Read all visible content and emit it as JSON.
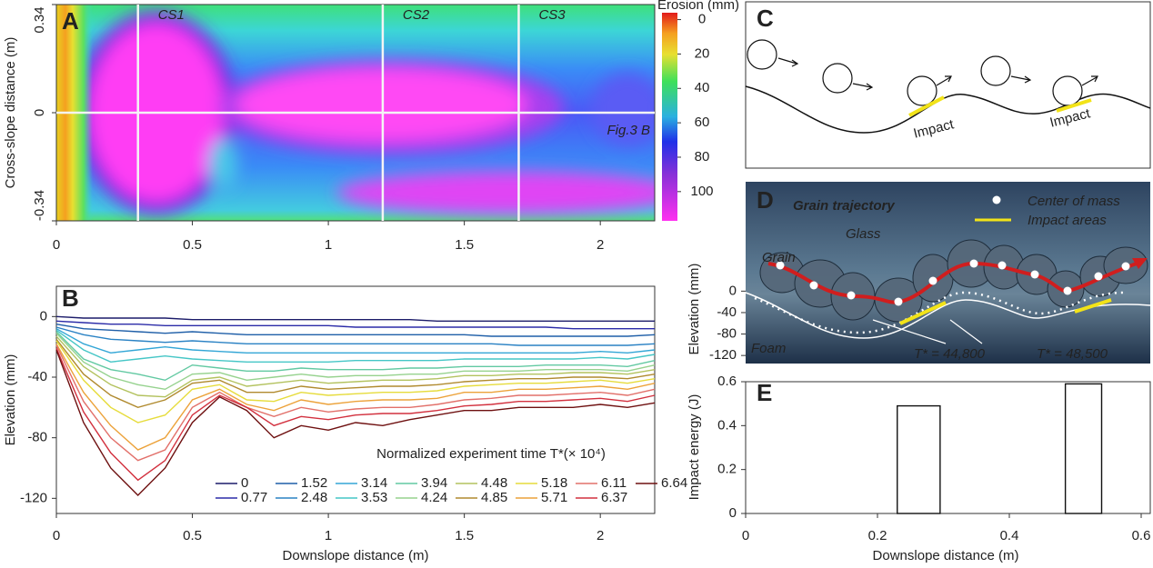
{
  "chart_data": [
    {
      "type": "heatmap",
      "panel_label": "A",
      "ylabel": "Cross-slope distance (m)",
      "xlim": [
        0,
        2.2
      ],
      "xticks": [
        0,
        0.5,
        1,
        1.5,
        2
      ],
      "ylim": [
        -0.34,
        0.34
      ],
      "yticks": [
        -0.34,
        0,
        0.34
      ],
      "colorbar": {
        "label": "Erosion (mm)",
        "clim": [
          -4,
          117
        ],
        "ticks": [
          0,
          20,
          40,
          60,
          80,
          100
        ]
      },
      "cross_sections": [
        {
          "text": "CS1",
          "x": 0.3
        },
        {
          "text": "CS2",
          "x": 1.2
        },
        {
          "text": "CS3",
          "x": 1.7
        }
      ],
      "profile": {
        "text": "Fig.3 B",
        "y": 0
      }
    },
    {
      "type": "line",
      "panel_label": "B",
      "xlabel": "Downslope distance (m)",
      "ylabel": "Elevation (mm)",
      "xlim": [
        0,
        2.2
      ],
      "xticks": [
        0,
        0.5,
        1,
        1.5,
        2
      ],
      "ylim": [
        -130,
        20
      ],
      "yticks": [
        -120,
        -80,
        -40,
        0
      ],
      "legend_title": "Normalized experiment time T*(× 10⁴)",
      "x": [
        0,
        0.1,
        0.2,
        0.3,
        0.4,
        0.5,
        0.6,
        0.7,
        0.8,
        0.9,
        1,
        1.1,
        1.2,
        1.3,
        1.4,
        1.5,
        1.6,
        1.7,
        1.8,
        1.9,
        2,
        2.1,
        2.2
      ],
      "series": [
        {
          "name": "0",
          "color": "#1c1c6a",
          "values": [
            0,
            -1,
            -1,
            -1,
            -1,
            -2,
            -2,
            -2,
            -2,
            -2,
            -2,
            -2,
            -2,
            -2,
            -3,
            -3,
            -3,
            -3,
            -3,
            -3,
            -3,
            -3,
            -3
          ]
        },
        {
          "name": "0.77",
          "color": "#2b2ba8",
          "values": [
            -3,
            -4,
            -5,
            -5,
            -6,
            -6,
            -6,
            -6,
            -6,
            -6,
            -6,
            -7,
            -7,
            -7,
            -7,
            -7,
            -7,
            -7,
            -7,
            -8,
            -8,
            -8,
            -8
          ]
        },
        {
          "name": "1.52",
          "color": "#1f5fa8",
          "values": [
            -5,
            -8,
            -9,
            -10,
            -11,
            -10,
            -11,
            -12,
            -12,
            -12,
            -12,
            -12,
            -12,
            -12,
            -12,
            -12,
            -13,
            -13,
            -13,
            -13,
            -13,
            -13,
            -12
          ]
        },
        {
          "name": "2.48",
          "color": "#2a82c4",
          "values": [
            -7,
            -12,
            -15,
            -16,
            -17,
            -16,
            -17,
            -18,
            -18,
            -18,
            -18,
            -18,
            -18,
            -18,
            -18,
            -18,
            -18,
            -19,
            -19,
            -19,
            -19,
            -19,
            -18
          ]
        },
        {
          "name": "3.14",
          "color": "#33a6d6",
          "values": [
            -8,
            -18,
            -24,
            -22,
            -20,
            -22,
            -23,
            -24,
            -24,
            -24,
            -24,
            -24,
            -24,
            -24,
            -24,
            -24,
            -24,
            -24,
            -24,
            -24,
            -23,
            -24,
            -22
          ]
        },
        {
          "name": "3.53",
          "color": "#45c6c6",
          "values": [
            -9,
            -22,
            -30,
            -28,
            -26,
            -28,
            -29,
            -30,
            -30,
            -30,
            -30,
            -29,
            -29,
            -29,
            -29,
            -28,
            -28,
            -28,
            -28,
            -28,
            -27,
            -28,
            -25
          ]
        },
        {
          "name": "3.94",
          "color": "#62c9a2",
          "values": [
            -10,
            -28,
            -35,
            -38,
            -42,
            -32,
            -34,
            -36,
            -36,
            -34,
            -35,
            -35,
            -35,
            -34,
            -34,
            -33,
            -33,
            -33,
            -32,
            -32,
            -32,
            -33,
            -29
          ]
        },
        {
          "name": "4.24",
          "color": "#96d28e",
          "values": [
            -11,
            -30,
            -40,
            -45,
            -48,
            -38,
            -37,
            -42,
            -40,
            -38,
            -40,
            -39,
            -39,
            -38,
            -38,
            -36,
            -36,
            -36,
            -35,
            -35,
            -35,
            -36,
            -32
          ]
        },
        {
          "name": "4.48",
          "color": "#b3c25e",
          "values": [
            -13,
            -33,
            -45,
            -52,
            -53,
            -42,
            -40,
            -46,
            -44,
            -42,
            -44,
            -43,
            -42,
            -42,
            -41,
            -39,
            -39,
            -38,
            -38,
            -37,
            -37,
            -38,
            -35
          ]
        },
        {
          "name": "4.85",
          "color": "#b08a2e",
          "values": [
            -15,
            -38,
            -52,
            -60,
            -55,
            -44,
            -42,
            -50,
            -50,
            -46,
            -48,
            -47,
            -46,
            -46,
            -45,
            -43,
            -42,
            -41,
            -41,
            -40,
            -40,
            -41,
            -38
          ]
        },
        {
          "name": "5.18",
          "color": "#e6dc3c",
          "values": [
            -16,
            -42,
            -60,
            -70,
            -65,
            -48,
            -45,
            -55,
            -56,
            -50,
            -52,
            -51,
            -50,
            -50,
            -49,
            -46,
            -45,
            -44,
            -44,
            -43,
            -42,
            -44,
            -41
          ]
        },
        {
          "name": "5.71",
          "color": "#eca23a",
          "values": [
            -18,
            -50,
            -72,
            -88,
            -80,
            -55,
            -48,
            -58,
            -62,
            -55,
            -58,
            -56,
            -55,
            -55,
            -54,
            -50,
            -50,
            -48,
            -48,
            -47,
            -46,
            -48,
            -44
          ]
        },
        {
          "name": "6.11",
          "color": "#e2706a",
          "values": [
            -19,
            -56,
            -80,
            -95,
            -88,
            -60,
            -50,
            -60,
            -66,
            -60,
            -63,
            -61,
            -60,
            -60,
            -58,
            -55,
            -54,
            -52,
            -52,
            -51,
            -50,
            -52,
            -48
          ]
        },
        {
          "name": "6.37",
          "color": "#d2303e",
          "values": [
            -21,
            -63,
            -90,
            -108,
            -95,
            -65,
            -52,
            -60,
            -72,
            -66,
            -68,
            -65,
            -64,
            -64,
            -62,
            -59,
            -58,
            -56,
            -56,
            -55,
            -54,
            -56,
            -52
          ]
        },
        {
          "name": "6.64",
          "color": "#6e1010",
          "values": [
            -22,
            -70,
            -100,
            -118,
            -100,
            -70,
            -53,
            -62,
            -80,
            -72,
            -75,
            -70,
            -72,
            -68,
            -65,
            -62,
            -62,
            -60,
            -60,
            -60,
            -58,
            -60,
            -57
          ]
        }
      ]
    },
    {
      "type": "image",
      "panel_label": "D",
      "ylabel": "Elevation (mm)",
      "ylim": [
        -135,
        204
      ],
      "yticks": [
        0,
        -40,
        -80,
        -120
      ],
      "legend": [
        {
          "name": "Center of mass",
          "color": "#ffffff"
        },
        {
          "name": "Impact areas",
          "color": "#f2e318"
        }
      ],
      "labels": {
        "trajectory": "Grain trajectory",
        "glass": "Glass",
        "grain": "Grain",
        "foam": "Foam",
        "t1": "T* = 44,800",
        "t2": "T* = 48,500"
      }
    },
    {
      "type": "bar",
      "panel_label": "E",
      "xlabel": "Downslope distance (m)",
      "ylabel": "Impact energy (J)",
      "xlim": [
        0,
        0.6
      ],
      "xticks": [
        0,
        0.2,
        0.4,
        0.6
      ],
      "ylim": [
        0,
        0.6
      ],
      "yticks": [
        0,
        0.2,
        0.4,
        0.6
      ],
      "bars": [
        {
          "x0": 0.23,
          "x1": 0.295,
          "value": 0.49
        },
        {
          "x0": 0.485,
          "x1": 0.54,
          "value": 0.59
        }
      ]
    }
  ],
  "panel_c": {
    "label": "C",
    "impacts": [
      "Impact",
      "Impact"
    ]
  }
}
